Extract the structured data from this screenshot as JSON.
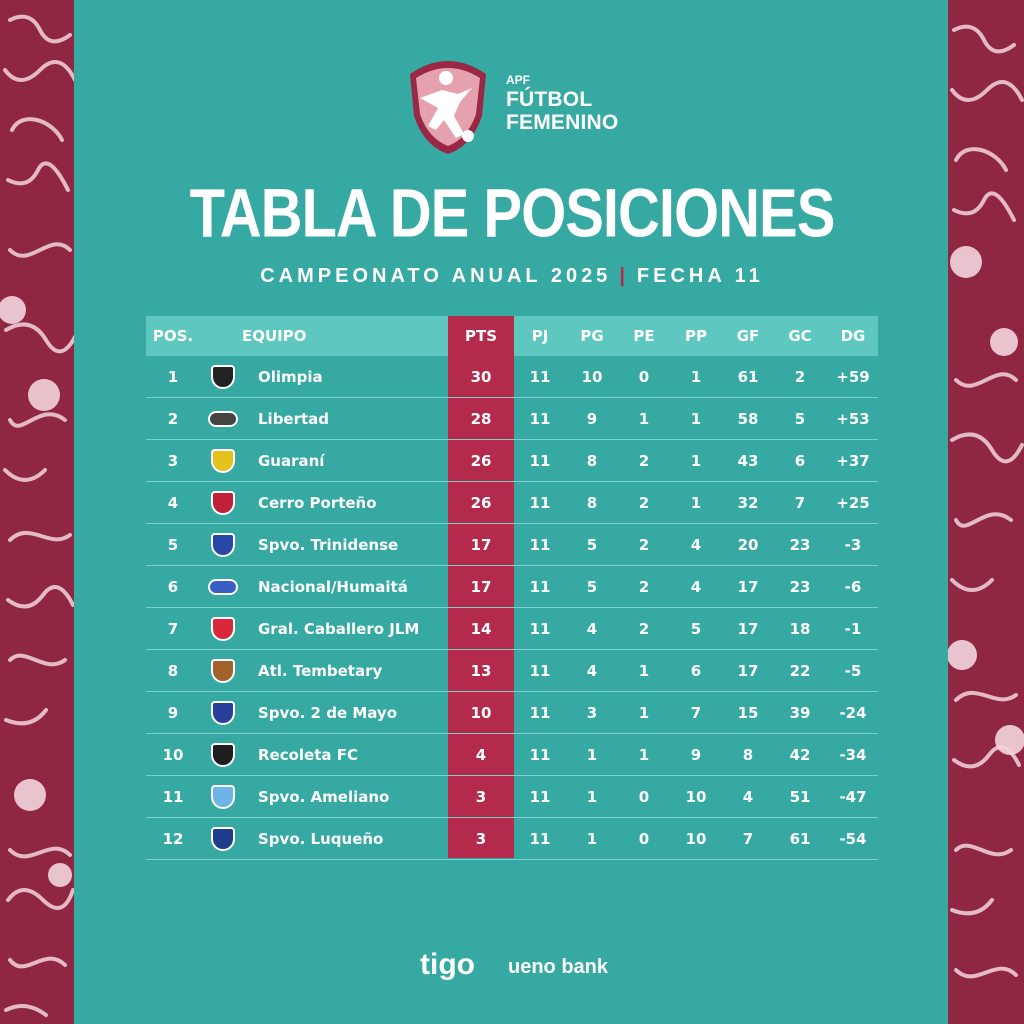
{
  "logo": {
    "line0": "APF",
    "line1": "FÚTBOL",
    "line2": "FEMENINO"
  },
  "title": "TABLA DE POSICIONES",
  "subtitle": {
    "left": "CAMPEONATO ANUAL 2025",
    "separator": "|",
    "right": "FECHA 11"
  },
  "colors": {
    "panel": "#35a9a2",
    "background": "#8f2743",
    "accent": "#b42a4d",
    "header": "#5ec7bf"
  },
  "headers": {
    "pos": "POS.",
    "team": "EQUIPO",
    "pts": "PTS",
    "pj": "PJ",
    "pg": "PG",
    "pe": "PE",
    "pp": "PP",
    "gf": "GF",
    "gc": "GC",
    "dg": "DG"
  },
  "rows": [
    {
      "pos": "1",
      "team": "Olimpia",
      "pts": "30",
      "pj": "11",
      "pg": "10",
      "pe": "0",
      "pp": "1",
      "gf": "61",
      "gc": "2",
      "dg": "+59",
      "crest": "olimpia-crest-icon",
      "crest_color": "#222222"
    },
    {
      "pos": "2",
      "team": "Libertad",
      "pts": "28",
      "pj": "11",
      "pg": "9",
      "pe": "1",
      "pp": "1",
      "gf": "58",
      "gc": "5",
      "dg": "+53",
      "crest": "libertad-crest-icon",
      "crest_color": "#444444"
    },
    {
      "pos": "3",
      "team": "Guaraní",
      "pts": "26",
      "pj": "11",
      "pg": "8",
      "pe": "2",
      "pp": "1",
      "gf": "43",
      "gc": "6",
      "dg": "+37",
      "crest": "guarani-crest-icon",
      "crest_color": "#e2c21b"
    },
    {
      "pos": "4",
      "team": "Cerro Porteño",
      "pts": "26",
      "pj": "11",
      "pg": "8",
      "pe": "2",
      "pp": "1",
      "gf": "32",
      "gc": "7",
      "dg": "+25",
      "crest": "cerro-porteno-crest-icon",
      "crest_color": "#c0203a"
    },
    {
      "pos": "5",
      "team": "Spvo. Trinidense",
      "pts": "17",
      "pj": "11",
      "pg": "5",
      "pe": "2",
      "pp": "4",
      "gf": "20",
      "gc": "23",
      "dg": "-3",
      "crest": "trinidense-crest-icon",
      "crest_color": "#2848a8"
    },
    {
      "pos": "6",
      "team": "Nacional/Humaitá",
      "pts": "17",
      "pj": "11",
      "pg": "5",
      "pe": "2",
      "pp": "4",
      "gf": "17",
      "gc": "23",
      "dg": "-6",
      "crest": "nacional-humaita-crest-icon",
      "crest_color": "#3a5fc4"
    },
    {
      "pos": "7",
      "team": "Gral. Caballero JLM",
      "pts": "14",
      "pj": "11",
      "pg": "4",
      "pe": "2",
      "pp": "5",
      "gf": "17",
      "gc": "18",
      "dg": "-1",
      "crest": "caballero-crest-icon",
      "crest_color": "#d8283a"
    },
    {
      "pos": "8",
      "team": "Atl. Tembetary",
      "pts": "13",
      "pj": "11",
      "pg": "4",
      "pe": "1",
      "pp": "6",
      "gf": "17",
      "gc": "22",
      "dg": "-5",
      "crest": "tembetary-crest-icon",
      "crest_color": "#a0612a"
    },
    {
      "pos": "9",
      "team": "Spvo. 2 de Mayo",
      "pts": "10",
      "pj": "11",
      "pg": "3",
      "pe": "1",
      "pp": "7",
      "gf": "15",
      "gc": "39",
      "dg": "-24",
      "crest": "dos-de-mayo-crest-icon",
      "crest_color": "#2a3e9c"
    },
    {
      "pos": "10",
      "team": "Recoleta FC",
      "pts": "4",
      "pj": "11",
      "pg": "1",
      "pe": "1",
      "pp": "9",
      "gf": "8",
      "gc": "42",
      "dg": "-34",
      "crest": "recoleta-crest-icon",
      "crest_color": "#1e1e1e"
    },
    {
      "pos": "11",
      "team": "Spvo. Ameliano",
      "pts": "3",
      "pj": "11",
      "pg": "1",
      "pe": "0",
      "pp": "10",
      "gf": "4",
      "gc": "51",
      "dg": "-47",
      "crest": "ameliano-crest-icon",
      "crest_color": "#6fb4e6"
    },
    {
      "pos": "12",
      "team": "Spvo. Luqueño",
      "pts": "3",
      "pj": "11",
      "pg": "1",
      "pe": "0",
      "pp": "10",
      "gf": "7",
      "gc": "61",
      "dg": "-54",
      "crest": "luqueno-crest-icon",
      "crest_color": "#1f3c8c"
    }
  ],
  "sponsors": {
    "tigo": "tigo",
    "ueno": "ueno bank"
  }
}
